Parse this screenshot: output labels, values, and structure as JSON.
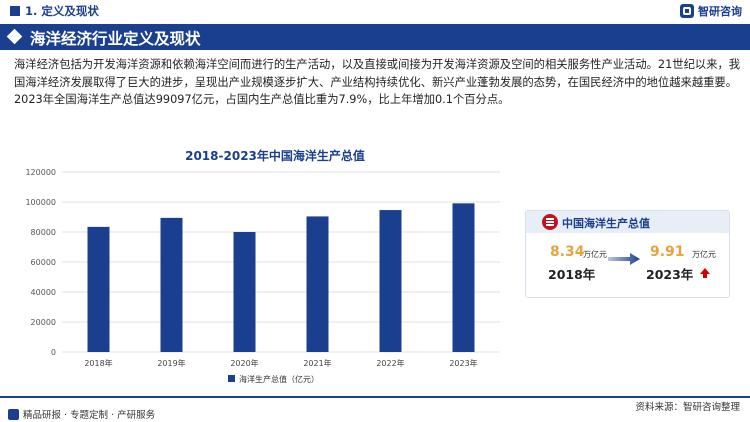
{
  "header": {
    "section": "1. 定义及现状",
    "brand": "智研咨询"
  },
  "title": "海洋经济行业定义及现状",
  "body_text": "海洋经济包括为开发海洋资源和依赖海洋空间而进行的生产活动，以及直接或间接为开发海洋资源及空间的相关服务性产业活动。21世纪以来，我国海洋经济发展取得了巨大的进步，呈现出产业规模逐步扩大、产业结构持续优化、新兴产业蓬勃发展的态势，在国民经济中的地位越来越重要。2023年全国海洋生产总值达99097亿元，占国内生产总值比重为7.9%，比上年增加0.1个百分点。",
  "chart_data": {
    "type": "bar",
    "title": "2018-2023年中国海洋生产总值",
    "categories": [
      "2018年",
      "2019年",
      "2020年",
      "2021年",
      "2022年",
      "2023年"
    ],
    "series": [
      {
        "name": "海洋生产总值（亿元）",
        "values": [
          83415,
          89415,
          80010,
          90385,
          94628,
          99097
        ]
      }
    ],
    "yticks": [
      "0",
      "20000",
      "40000",
      "60000",
      "80000",
      "100000",
      "120000"
    ],
    "ylim": [
      0,
      120000
    ],
    "grid": true,
    "legend": "bottom",
    "bar_color": "#1b3f8f"
  },
  "card": {
    "title": "中国海洋生产总值",
    "left_value": "8.34",
    "left_unit": "万亿元",
    "left_year": "2018年",
    "right_value": "9.91",
    "right_unit": "万亿元",
    "right_year": "2023年"
  },
  "footer": {
    "left": "精品研报 · 专题定制 · 产研服务",
    "source": "资料来源：智研咨询整理"
  },
  "colors": {
    "primary": "#1b3f8f",
    "accent": "#e8a33d",
    "up": "#d40000"
  }
}
